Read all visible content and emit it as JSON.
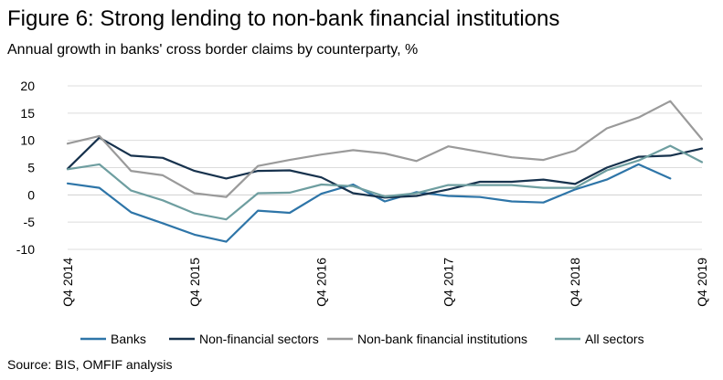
{
  "title": "Figure 6: Strong lending to non-bank financial institutions",
  "subtitle": "Annual growth in banks' cross border claims by counterparty, %",
  "source": "Source: BIS, OMFIF analysis",
  "chart_data": {
    "type": "line",
    "x": [
      "Q4 2014",
      "Q1 2015",
      "Q2 2015",
      "Q3 2015",
      "Q4 2015",
      "Q1 2016",
      "Q2 2016",
      "Q3 2016",
      "Q4 2016",
      "Q1 2017",
      "Q2 2017",
      "Q3 2017",
      "Q4 2017",
      "Q1 2018",
      "Q2 2018",
      "Q3 2018",
      "Q4 2018",
      "Q1 2019",
      "Q2 2019",
      "Q3 2019",
      "Q4 2019"
    ],
    "x_tick_labels": [
      "Q4 2014",
      "Q4 2015",
      "Q4 2016",
      "Q4 2017",
      "Q4 2018",
      "Q4 2019"
    ],
    "ylim": [
      -10,
      20
    ],
    "yticks": [
      -10,
      -5,
      0,
      5,
      10,
      15,
      20
    ],
    "grid": true,
    "legend_position": "bottom",
    "series": [
      {
        "name": "Banks",
        "color": "#2e75a8",
        "values": [
          2.1,
          1.3,
          -3.2,
          -5.2,
          -7.3,
          -8.6,
          -2.9,
          -3.3,
          0.2,
          1.9,
          -1.2,
          0.5,
          -0.2,
          -0.4,
          -1.2,
          -1.4,
          1.0,
          2.8,
          5.6,
          3.0,
          null
        ]
      },
      {
        "name": "Non-financial sectors",
        "color": "#17324d",
        "values": [
          4.8,
          10.5,
          7.2,
          6.8,
          4.4,
          3.0,
          4.4,
          4.5,
          3.2,
          0.3,
          -0.5,
          -0.2,
          1.0,
          2.4,
          2.4,
          2.8,
          2.0,
          5.0,
          7.0,
          7.2,
          8.5
        ]
      },
      {
        "name": "Non-bank financial institutions",
        "color": "#9a9a9a",
        "values": [
          9.4,
          10.8,
          4.4,
          3.6,
          0.3,
          -0.4,
          5.3,
          6.4,
          7.4,
          8.2,
          7.6,
          6.2,
          8.9,
          7.9,
          6.9,
          6.4,
          8.1,
          12.2,
          14.2,
          17.2,
          10.2
        ]
      },
      {
        "name": "All sectors",
        "color": "#6e9ea0",
        "values": [
          4.7,
          5.6,
          0.8,
          -1.0,
          -3.4,
          -4.5,
          0.3,
          0.4,
          1.9,
          1.6,
          -0.3,
          0.3,
          1.8,
          1.8,
          1.8,
          1.3,
          1.3,
          4.5,
          6.3,
          9.0,
          6.0
        ]
      }
    ]
  }
}
